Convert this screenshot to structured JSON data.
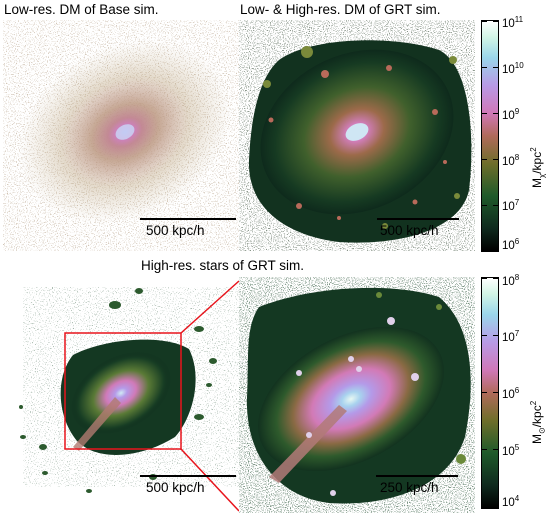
{
  "top": {
    "left_title": "Low-res. DM of Base sim.",
    "right_title": "Low- & High-res. DM of GRT sim.",
    "left_scale": "500 kpc/h",
    "right_scale": "500 kpc/h",
    "colorbar": {
      "unit_prefix": "M",
      "unit_sub": "χ",
      "unit_mid": "/kpc",
      "unit_sup": "2",
      "ticks": [
        {
          "base": "10",
          "exp": "11"
        },
        {
          "base": "10",
          "exp": "10"
        },
        {
          "base": "10",
          "exp": "9"
        },
        {
          "base": "10",
          "exp": "8"
        },
        {
          "base": "10",
          "exp": "7"
        },
        {
          "base": "10",
          "exp": "6"
        }
      ]
    }
  },
  "bottom": {
    "title": "High-res. stars of GRT sim.",
    "left_scale": "500 kpc/h",
    "right_scale": "250 kpc/h",
    "colorbar": {
      "unit_prefix": "M",
      "unit_sub": "⊙",
      "unit_mid": "/kpc",
      "unit_sup": "2",
      "ticks": [
        {
          "base": "10",
          "exp": "8"
        },
        {
          "base": "10",
          "exp": "7"
        },
        {
          "base": "10",
          "exp": "6"
        },
        {
          "base": "10",
          "exp": "5"
        },
        {
          "base": "10",
          "exp": "4"
        }
      ]
    }
  },
  "colors": {
    "zoom_box": "#e8141c",
    "cubehelix": [
      "#000000",
      "#0f2a1e",
      "#1f5a2a",
      "#6e6e2a",
      "#b06a5a",
      "#d078b8",
      "#b89ae6",
      "#9ad6ea",
      "#d2f6e6",
      "#ffffff"
    ]
  }
}
